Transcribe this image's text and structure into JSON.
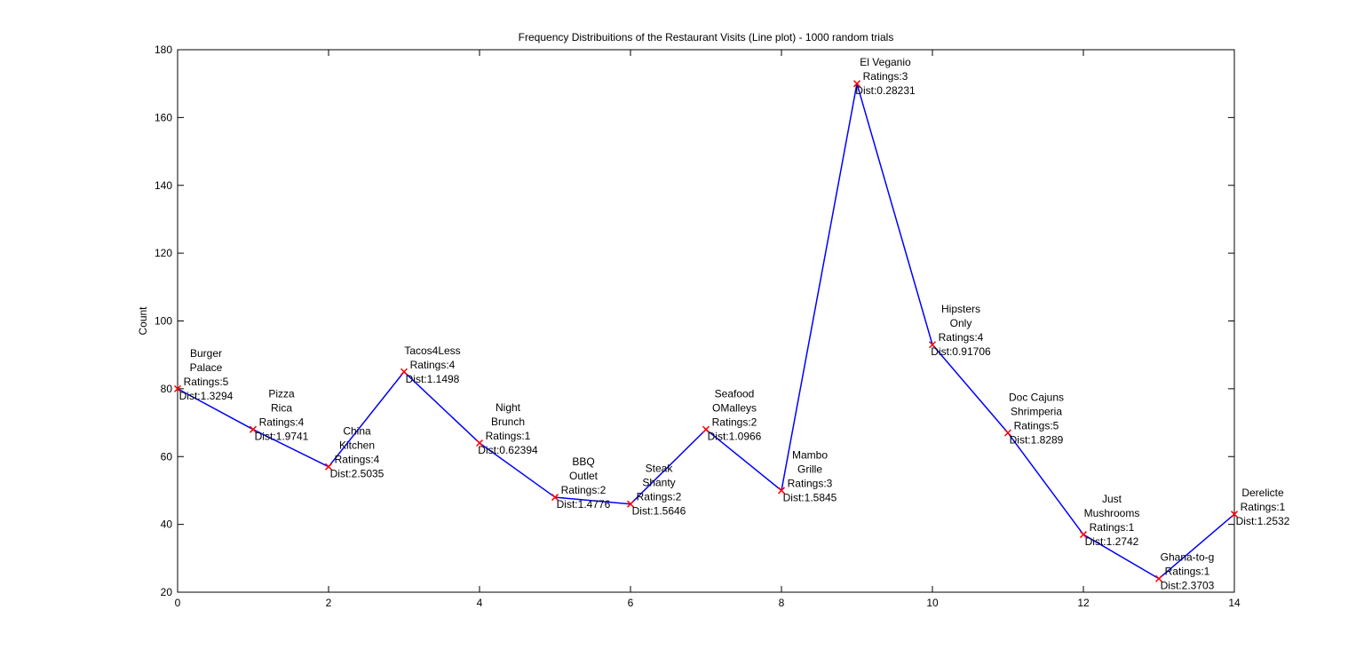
{
  "chart_data": {
    "type": "line",
    "title": "Frequency Distribuitions of the Restaurant Visits (Line plot) - 1000 random trials",
    "xlabel": "",
    "ylabel": "Count",
    "xlim": [
      0,
      14
    ],
    "ylim": [
      20,
      180
    ],
    "xticks": [
      0,
      2,
      4,
      6,
      8,
      10,
      12,
      14
    ],
    "yticks": [
      20,
      40,
      60,
      80,
      100,
      120,
      140,
      160,
      180
    ],
    "grid": false,
    "line_color": "#0000ff",
    "marker_color": "#ff0000",
    "marker": "x",
    "series": [
      {
        "x": [
          0,
          1,
          2,
          3,
          4,
          5,
          6,
          7,
          8,
          9,
          10,
          11,
          12,
          13,
          14
        ],
        "y": [
          80,
          68,
          57,
          85,
          64,
          48,
          46,
          68,
          50,
          170,
          93,
          67,
          37,
          24,
          43
        ]
      }
    ],
    "annotations": [
      {
        "x": 0,
        "y": 80,
        "lines": [
          "Burger",
          "Palace",
          "Ratings:5",
          "Dist:1.3294"
        ]
      },
      {
        "x": 1,
        "y": 68,
        "lines": [
          "Pizza",
          "Rica",
          "Ratings:4",
          "Dist:1.9741"
        ]
      },
      {
        "x": 2,
        "y": 57,
        "lines": [
          "China",
          "Kitchen",
          "Ratings:4",
          "Dist:2.5035"
        ]
      },
      {
        "x": 3,
        "y": 85,
        "lines": [
          "Tacos4Less",
          "Ratings:4",
          "Dist:1.1498"
        ]
      },
      {
        "x": 4,
        "y": 64,
        "lines": [
          "Night",
          "Brunch",
          "Ratings:1",
          "Dist:0.62394"
        ]
      },
      {
        "x": 5,
        "y": 48,
        "lines": [
          "BBQ",
          "Outlet",
          "Ratings:2",
          "Dist:1.4776"
        ]
      },
      {
        "x": 6,
        "y": 46,
        "lines": [
          "Steak",
          "Shanty",
          "Ratings:2",
          "Dist:1.5646"
        ]
      },
      {
        "x": 7,
        "y": 68,
        "lines": [
          "Seafood",
          "OMalleys",
          "Ratings:2",
          "Dist:1.0966"
        ]
      },
      {
        "x": 8,
        "y": 50,
        "lines": [
          "Mambo",
          "Grille",
          "Ratings:3",
          "Dist:1.5845"
        ]
      },
      {
        "x": 9,
        "y": 170,
        "lines": [
          "El Veganio",
          "Ratings:3",
          "Dist:0.28231"
        ]
      },
      {
        "x": 10,
        "y": 93,
        "lines": [
          "Hipsters",
          "Only",
          "Ratings:4",
          "Dist:0.91706"
        ]
      },
      {
        "x": 11,
        "y": 67,
        "lines": [
          "Doc Cajuns",
          "Shrimperia",
          "Ratings:5",
          "Dist:1.8289"
        ]
      },
      {
        "x": 12,
        "y": 37,
        "lines": [
          "Just",
          "Mushrooms",
          "Ratings:1",
          "Dist:1.2742"
        ]
      },
      {
        "x": 13,
        "y": 24,
        "lines": [
          "Ghana-to-g",
          "Ratings:1",
          "Dist:2.3703"
        ]
      },
      {
        "x": 14,
        "y": 43,
        "lines": [
          "Derelicte",
          "Ratings:1",
          "Dist:1.2532"
        ]
      }
    ]
  }
}
